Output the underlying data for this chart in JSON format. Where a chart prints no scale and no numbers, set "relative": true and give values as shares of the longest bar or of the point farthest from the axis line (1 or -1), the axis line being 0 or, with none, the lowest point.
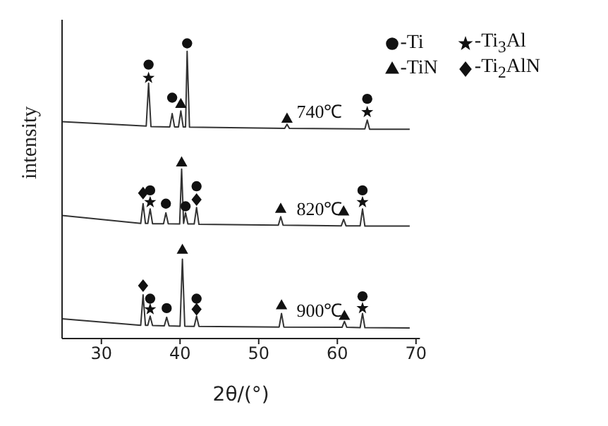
{
  "chart_data": {
    "type": "line",
    "relative": true,
    "xlabel": "2θ/(°)",
    "ylabel": "intensity",
    "xlim": [
      25,
      70.5
    ],
    "xticks": [
      30,
      40,
      50,
      60,
      70
    ],
    "legend": "top right",
    "grid": false,
    "series": [
      {
        "color": "#333333",
        "marker": "none",
        "x": [
          25,
          35.7,
          36.0,
          36.3,
          38.7,
          39.0,
          39.3,
          39.8,
          40.1,
          40.4,
          40.7,
          40.9,
          41.2,
          53.3,
          53.6,
          53.9,
          63.5,
          63.8,
          64.1,
          69.2
        ],
        "values": [
          0.735,
          0.72,
          0.865,
          0.718,
          0.717,
          0.762,
          0.717,
          0.717,
          0.771,
          0.717,
          0.717,
          0.973,
          0.716,
          0.712,
          0.726,
          0.712,
          0.71,
          0.74,
          0.709,
          0.709
        ]
      },
      {
        "color": "#333333",
        "marker": "none",
        "x": [
          25,
          35.0,
          35.3,
          35.6,
          35.9,
          36.2,
          36.5,
          37.9,
          38.2,
          38.5,
          39.95,
          40.2,
          40.45,
          40.7,
          41.0,
          41.8,
          42.1,
          42.4,
          52.5,
          52.8,
          53.1,
          60.5,
          60.8,
          61.1,
          62.9,
          63.2,
          63.5,
          69.2
        ],
        "values": [
          0.417,
          0.39,
          0.457,
          0.39,
          0.39,
          0.439,
          0.389,
          0.389,
          0.426,
          0.389,
          0.388,
          0.574,
          0.39,
          0.426,
          0.388,
          0.388,
          0.444,
          0.387,
          0.384,
          0.413,
          0.384,
          0.382,
          0.404,
          0.382,
          0.382,
          0.439,
          0.381,
          0.381
        ]
      },
      {
        "color": "#333333",
        "marker": "none",
        "x": [
          25,
          35.0,
          35.3,
          35.6,
          35.9,
          36.2,
          36.5,
          38.0,
          38.3,
          38.6,
          40.0,
          40.3,
          40.6,
          41.8,
          42.1,
          42.4,
          52.6,
          52.9,
          53.2,
          60.6,
          60.9,
          61.2,
          62.9,
          63.2,
          63.5,
          69.2
        ],
        "values": [
          0.067,
          0.045,
          0.148,
          0.045,
          0.045,
          0.076,
          0.044,
          0.043,
          0.072,
          0.043,
          0.042,
          0.269,
          0.042,
          0.041,
          0.076,
          0.041,
          0.039,
          0.085,
          0.039,
          0.038,
          0.058,
          0.038,
          0.037,
          0.085,
          0.037,
          0.036
        ]
      },
      {
        "type": "scatter",
        "name": "-Ti",
        "color": "#111111",
        "marker": "circle",
        "x": [
          36.0,
          39.0,
          40.9,
          63.8,
          36.2,
          38.2,
          40.7,
          42.1,
          63.2,
          36.2,
          38.3,
          42.1,
          63.2
        ],
        "values": [
          0.928,
          0.816,
          1.0,
          0.812,
          0.502,
          0.457,
          0.448,
          0.516,
          0.502,
          0.135,
          0.103,
          0.135,
          0.143
        ]
      },
      {
        "type": "scatter",
        "name": "-Ti$_{3}$Al",
        "color": "#111111",
        "marker": "star",
        "x": [
          36.0,
          63.8,
          36.2,
          63.2,
          36.2,
          63.2
        ],
        "values": [
          0.883,
          0.767,
          0.462,
          0.462,
          0.099,
          0.103
        ]
      },
      {
        "type": "scatter",
        "name": "-TiN",
        "color": "#111111",
        "marker": "triangle",
        "x": [
          40.1,
          53.6,
          40.2,
          52.8,
          60.8,
          40.3,
          52.9,
          60.9
        ],
        "values": [
          0.794,
          0.744,
          0.596,
          0.439,
          0.43,
          0.3,
          0.112,
          0.076
        ]
      },
      {
        "type": "scatter",
        "name": "-Ti$_{2}$AlN",
        "color": "#111111",
        "marker": "diamond",
        "x": [
          35.3,
          42.1,
          35.3,
          42.1
        ],
        "values": [
          0.493,
          0.471,
          0.179,
          0.099
        ]
      }
    ],
    "annotations": [
      "740℃",
      "820℃",
      "900℃"
    ]
  }
}
